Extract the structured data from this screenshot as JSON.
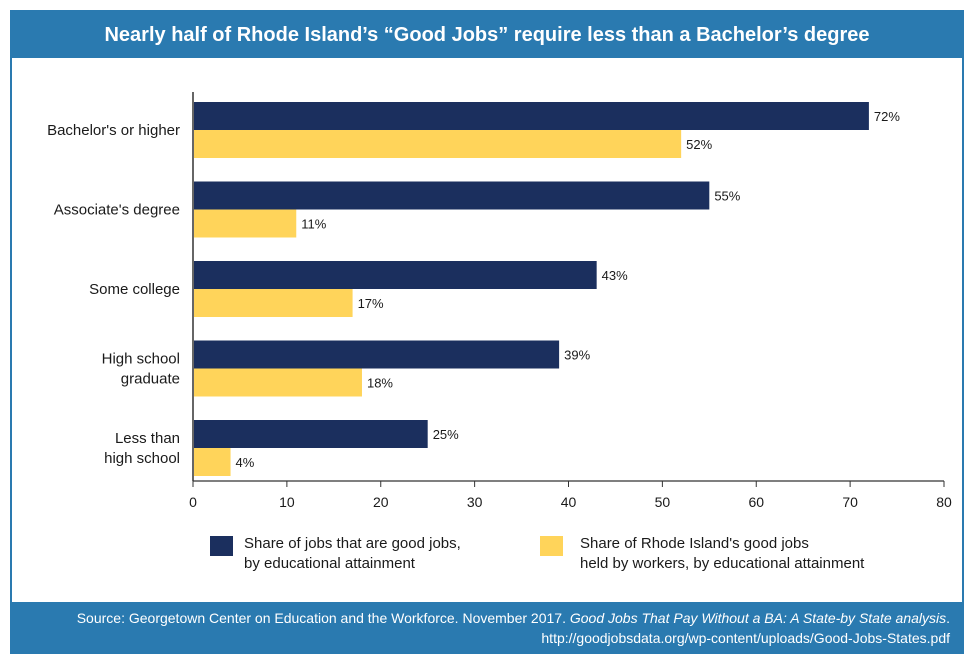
{
  "chart_data": {
    "type": "bar",
    "orientation": "horizontal",
    "title": "Nearly half of Rhode Island’s “Good Jobs” require less than a Bachelor’s degree",
    "categories": [
      [
        "Bachelor's or higher"
      ],
      [
        "Associate's degree"
      ],
      [
        "Some college"
      ],
      [
        "High school",
        "graduate"
      ],
      [
        "Less than",
        "high school"
      ]
    ],
    "series": [
      {
        "name": [
          "Share of jobs that are good jobs,",
          "by educational attainment"
        ],
        "color": "#1b2f5e",
        "values": [
          72,
          55,
          43,
          39,
          25
        ],
        "labels": [
          "72%",
          "55%",
          "43%",
          "39%",
          "25%"
        ]
      },
      {
        "name": [
          "Share of Rhode Island's good jobs",
          "held by workers, by educational attainment"
        ],
        "color": "#ffd45a",
        "values": [
          52,
          11,
          17,
          18,
          4
        ],
        "labels": [
          "52%",
          "11%",
          "17%",
          "18%",
          "4%"
        ]
      }
    ],
    "xlim": [
      0,
      80
    ],
    "xticks": [
      0,
      10,
      20,
      30,
      40,
      50,
      60,
      70,
      80
    ],
    "grid": false,
    "legend_position": "bottom"
  },
  "source": {
    "prefix": "Source: Georgetown Center on Education and the Workforce. November 2017. ",
    "italic": "Good Jobs That Pay Without a BA: A State-by State analysis",
    "suffix": ".",
    "url": "http://goodjobsdata.org/wp-content/uploads/Good-Jobs-States.pdf"
  }
}
